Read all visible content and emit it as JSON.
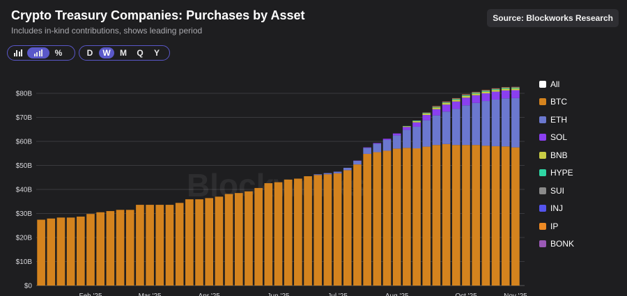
{
  "header": {
    "title": "Crypto Treasury Companies: Purchases by Asset",
    "subtitle": "Includes in-kind contributions, shows leading period",
    "source": "Source: Blockworks Research",
    "watermark": "Blockworks"
  },
  "controls": {
    "view_buttons": [
      {
        "icon": "bar-chart-icon",
        "active": false
      },
      {
        "icon": "stacked-bar-icon",
        "active": true
      },
      {
        "label": "%",
        "active": false
      }
    ],
    "period_buttons": [
      {
        "label": "D",
        "active": false
      },
      {
        "label": "W",
        "active": true
      },
      {
        "label": "M",
        "active": false
      },
      {
        "label": "Q",
        "active": false
      },
      {
        "label": "Y",
        "active": false
      }
    ]
  },
  "legend": [
    {
      "name": "All",
      "color": "#ffffff"
    },
    {
      "name": "BTC",
      "color": "#d4831e"
    },
    {
      "name": "ETH",
      "color": "#6b78cf"
    },
    {
      "name": "SOL",
      "color": "#8a3ff0"
    },
    {
      "name": "BNB",
      "color": "#c8cc45"
    },
    {
      "name": "HYPE",
      "color": "#2fd6a4"
    },
    {
      "name": "SUI",
      "color": "#8a8a8a"
    },
    {
      "name": "INJ",
      "color": "#5454ee"
    },
    {
      "name": "IP",
      "color": "#ee8a24"
    },
    {
      "name": "BONK",
      "color": "#9b59b6"
    }
  ],
  "chart_data": {
    "type": "bar",
    "stacked": true,
    "title": "Crypto Treasury Companies: Purchases by Asset",
    "ylim": [
      0,
      80
    ],
    "yticks": [
      "$0",
      "$10B",
      "$20B",
      "$30B",
      "$40B",
      "$50B",
      "$60B",
      "$70B",
      "$80B"
    ],
    "x_tick_labels": [
      "Feb '25",
      "Mar '25",
      "Apr '25",
      "Jun '25",
      "Jul '25",
      "Aug '25",
      "Oct '25",
      "Nov '25"
    ],
    "x_tick_bar_index": [
      5,
      11,
      17,
      24,
      30,
      36,
      43,
      48
    ],
    "unit": "USD billions",
    "grid": true,
    "legend_position": "right",
    "series": [
      {
        "name": "BTC",
        "color": "#d4831e",
        "values": [
          27.4,
          27.9,
          28.3,
          28.3,
          28.7,
          29.8,
          30.5,
          31.0,
          31.5,
          31.5,
          33.6,
          33.6,
          33.6,
          33.6,
          34.4,
          35.9,
          35.9,
          36.4,
          37.0,
          38.1,
          38.5,
          39.2,
          40.6,
          42.6,
          43.0,
          44.1,
          44.5,
          45.5,
          46.0,
          46.3,
          46.7,
          48.0,
          50.4,
          54.8,
          55.5,
          56.1,
          57.0,
          57.3,
          57.1,
          57.8,
          58.5,
          58.9,
          58.5,
          58.5,
          58.5,
          58.2,
          58.0,
          57.9,
          57.5
        ]
      },
      {
        "name": "ETH",
        "color": "#6b78cf",
        "values": [
          0,
          0,
          0,
          0,
          0,
          0,
          0,
          0,
          0,
          0,
          0,
          0,
          0,
          0,
          0,
          0,
          0,
          0,
          0,
          0,
          0,
          0,
          0,
          0,
          0,
          0,
          0,
          0,
          0.3,
          0.5,
          0.7,
          1.0,
          1.5,
          2.5,
          3.5,
          4.5,
          5.5,
          7.5,
          9.0,
          11.0,
          12.3,
          13.5,
          15.0,
          16.5,
          17.5,
          18.6,
          19.4,
          20.0,
          20.5
        ]
      },
      {
        "name": "SOL",
        "color": "#8a3ff0",
        "values": [
          0,
          0,
          0,
          0,
          0,
          0,
          0,
          0,
          0,
          0,
          0,
          0,
          0,
          0,
          0,
          0,
          0,
          0,
          0,
          0,
          0,
          0,
          0,
          0,
          0,
          0,
          0,
          0,
          0,
          0,
          0,
          0,
          0.1,
          0.2,
          0.3,
          0.5,
          0.8,
          1.2,
          1.8,
          2.2,
          2.6,
          2.9,
          3.1,
          3.2,
          3.2,
          3.2,
          3.3,
          3.3,
          3.3
        ]
      },
      {
        "name": "BNB",
        "color": "#c8cc45",
        "values": [
          0,
          0,
          0,
          0,
          0,
          0,
          0,
          0,
          0,
          0,
          0,
          0,
          0,
          0,
          0,
          0,
          0,
          0,
          0,
          0,
          0,
          0,
          0,
          0,
          0,
          0,
          0,
          0,
          0,
          0,
          0,
          0,
          0,
          0,
          0,
          0,
          0,
          0.3,
          0.5,
          0.6,
          0.7,
          0.7,
          0.7,
          0.7,
          0.7,
          0.7,
          0.7,
          0.7,
          0.7
        ]
      },
      {
        "name": "HYPE",
        "color": "#2fd6a4",
        "values": [
          0,
          0,
          0,
          0,
          0,
          0,
          0,
          0,
          0,
          0,
          0,
          0,
          0,
          0,
          0,
          0,
          0,
          0,
          0,
          0,
          0,
          0,
          0,
          0,
          0,
          0,
          0,
          0,
          0,
          0,
          0,
          0,
          0,
          0,
          0,
          0,
          0,
          0.1,
          0.2,
          0.2,
          0.2,
          0.2,
          0.3,
          0.3,
          0.3,
          0.3,
          0.3,
          0.3,
          0.3
        ]
      },
      {
        "name": "SUI",
        "color": "#8a8a8a",
        "values": [
          0,
          0,
          0,
          0,
          0,
          0,
          0,
          0,
          0,
          0,
          0,
          0,
          0,
          0,
          0,
          0,
          0,
          0,
          0,
          0,
          0,
          0,
          0,
          0,
          0,
          0,
          0,
          0,
          0,
          0,
          0,
          0,
          0,
          0,
          0,
          0,
          0,
          0,
          0.1,
          0.1,
          0.1,
          0.1,
          0.1,
          0.1,
          0.1,
          0.1,
          0.1,
          0.1,
          0.1
        ]
      },
      {
        "name": "INJ",
        "color": "#5454ee",
        "values": [
          0,
          0,
          0,
          0,
          0,
          0,
          0,
          0,
          0,
          0,
          0,
          0,
          0,
          0,
          0,
          0,
          0,
          0,
          0,
          0,
          0,
          0,
          0,
          0,
          0,
          0,
          0,
          0,
          0,
          0,
          0,
          0,
          0,
          0,
          0,
          0,
          0,
          0,
          0,
          0.05,
          0.05,
          0.05,
          0.05,
          0.05,
          0.05,
          0.05,
          0.05,
          0.05,
          0.05
        ]
      },
      {
        "name": "IP",
        "color": "#ee8a24",
        "values": [
          0,
          0,
          0,
          0,
          0,
          0,
          0,
          0,
          0,
          0,
          0,
          0,
          0,
          0,
          0,
          0,
          0,
          0,
          0,
          0,
          0,
          0,
          0,
          0,
          0,
          0,
          0,
          0,
          0,
          0,
          0,
          0,
          0,
          0,
          0,
          0,
          0,
          0,
          0,
          0.1,
          0.2,
          0.2,
          0.2,
          0.2,
          0.2,
          0.2,
          0.2,
          0.2,
          0.2
        ]
      },
      {
        "name": "BONK",
        "color": "#9b59b6",
        "values": [
          0,
          0,
          0,
          0,
          0,
          0,
          0,
          0,
          0,
          0,
          0,
          0,
          0,
          0,
          0,
          0,
          0,
          0,
          0,
          0,
          0,
          0,
          0,
          0,
          0,
          0,
          0,
          0,
          0,
          0,
          0,
          0,
          0,
          0,
          0,
          0,
          0,
          0,
          0,
          0,
          0.05,
          0.05,
          0.05,
          0.05,
          0.05,
          0.05,
          0.05,
          0.05,
          0.05
        ]
      }
    ]
  }
}
